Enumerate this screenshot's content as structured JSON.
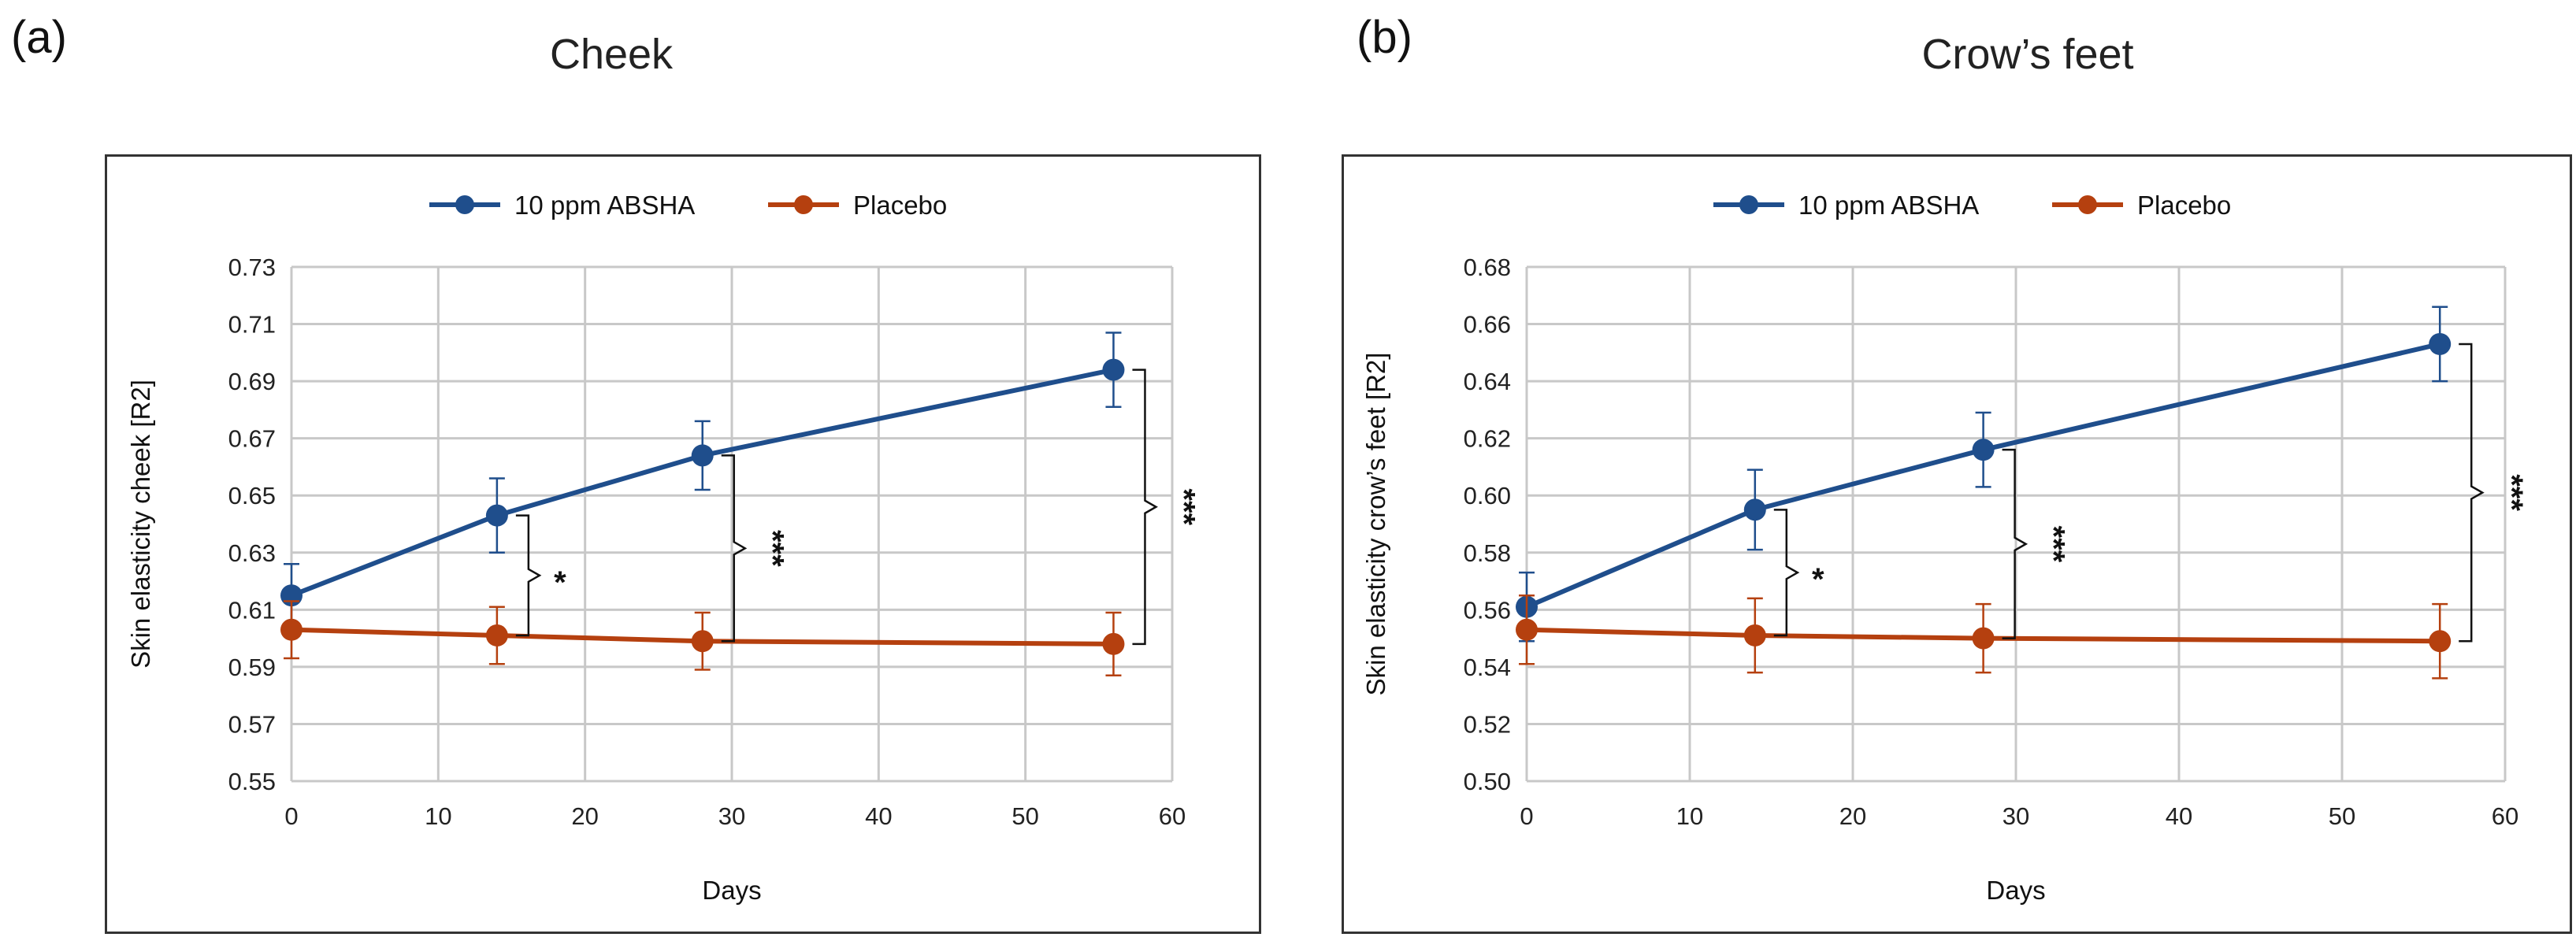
{
  "panels": [
    {
      "label": "(a)",
      "title": "Cheek",
      "chart_data": {
        "type": "line",
        "title": "Cheek",
        "xlabel": "Days",
        "ylabel": "Skin elasticity cheek [R2]",
        "xlim": [
          0,
          60
        ],
        "ylim": [
          0.55,
          0.73
        ],
        "xticks": [
          0,
          10,
          20,
          30,
          40,
          50,
          60
        ],
        "yticks": [
          0.55,
          0.57,
          0.59,
          0.61,
          0.63,
          0.65,
          0.67,
          0.69,
          0.71,
          0.73
        ],
        "ytick_labels": [
          "0.55",
          "0.57",
          "0.59",
          "0.61",
          "0.63",
          "0.65",
          "0.67",
          "0.69",
          "0.71",
          "0.73"
        ],
        "grid": true,
        "legend_position": "top-center",
        "series": [
          {
            "name": "10 ppm ABSHA",
            "color": "#1f4e8c",
            "x": [
              0,
              14,
              28,
              56
            ],
            "y": [
              0.615,
              0.643,
              0.664,
              0.694
            ],
            "err": [
              0.011,
              0.013,
              0.012,
              0.013
            ]
          },
          {
            "name": "Placebo",
            "color": "#b5400f",
            "x": [
              0,
              14,
              28,
              56
            ],
            "y": [
              0.603,
              0.601,
              0.599,
              0.598
            ],
            "err": [
              0.01,
              0.01,
              0.01,
              0.011
            ]
          }
        ],
        "significance": [
          {
            "x": 14,
            "y_top": 0.643,
            "y_bottom": 0.601,
            "label": "*"
          },
          {
            "x": 28,
            "y_top": 0.664,
            "y_bottom": 0.599,
            "label": "***"
          },
          {
            "x": 56,
            "y_top": 0.694,
            "y_bottom": 0.598,
            "label": "***"
          }
        ]
      }
    },
    {
      "label": "(b)",
      "title": "Crow’s feet",
      "chart_data": {
        "type": "line",
        "title": "Crow’s feet",
        "xlabel": "Days",
        "ylabel": "Skin elasticity crow’s feet [R2]",
        "xlim": [
          0,
          60
        ],
        "ylim": [
          0.5,
          0.68
        ],
        "xticks": [
          0,
          10,
          20,
          30,
          40,
          50,
          60
        ],
        "yticks": [
          0.5,
          0.52,
          0.54,
          0.56,
          0.58,
          0.6,
          0.62,
          0.64,
          0.66,
          0.68
        ],
        "ytick_labels": [
          "0.50",
          "0.52",
          "0.54",
          "0.56",
          "0.58",
          "0.60",
          "0.62",
          "0.64",
          "0.66",
          "0.68"
        ],
        "grid": true,
        "legend_position": "top-center",
        "series": [
          {
            "name": "10 ppm ABSHA",
            "color": "#1f4e8c",
            "x": [
              0,
              14,
              28,
              56
            ],
            "y": [
              0.561,
              0.595,
              0.616,
              0.653
            ],
            "err": [
              0.012,
              0.014,
              0.013,
              0.013
            ]
          },
          {
            "name": "Placebo",
            "color": "#b5400f",
            "x": [
              0,
              14,
              28,
              56
            ],
            "y": [
              0.553,
              0.551,
              0.55,
              0.549
            ],
            "err": [
              0.012,
              0.013,
              0.012,
              0.013
            ]
          }
        ],
        "significance": [
          {
            "x": 14,
            "y_top": 0.595,
            "y_bottom": 0.551,
            "label": "*"
          },
          {
            "x": 28,
            "y_top": 0.616,
            "y_bottom": 0.55,
            "label": "***"
          },
          {
            "x": 56,
            "y_top": 0.653,
            "y_bottom": 0.549,
            "label": "***"
          }
        ]
      }
    }
  ]
}
